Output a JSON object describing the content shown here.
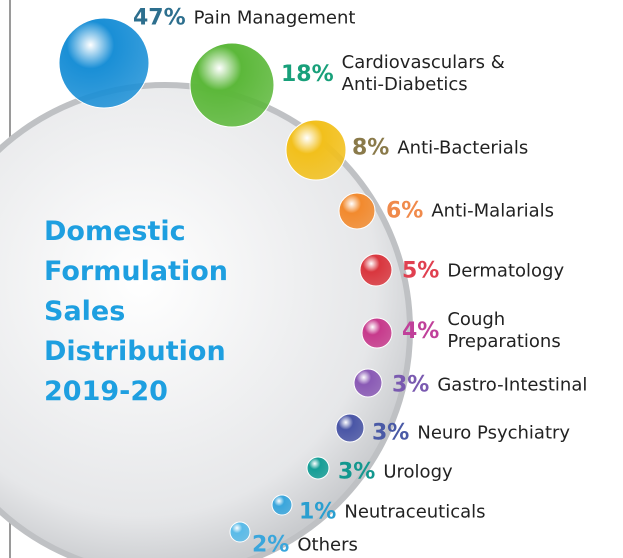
{
  "chart_data": {
    "type": "bubble",
    "title": "Domestic Formulation Sales Distribution 2019-20",
    "categories": [
      "Pain Management",
      "Cardiovasculars & Anti-Diabetics",
      "Anti-Bacterials",
      "Anti-Malarials",
      "Dermatology",
      "Cough Preparations",
      "Gastro-Intestinal",
      "Neuro Psychiatry",
      "Urology",
      "Neutraceuticals",
      "Others"
    ],
    "values": [
      47,
      18,
      8,
      6,
      5,
      4,
      3,
      3,
      3,
      1,
      2
    ],
    "value_labels": [
      "47%",
      "18%",
      "8%",
      "6%",
      "5%",
      "4%",
      "3%",
      "3%",
      "3%",
      "1%",
      "2%"
    ],
    "colors": [
      "#1a8fd6",
      "#5cb83a",
      "#f2c01c",
      "#f28a2e",
      "#d9363e",
      "#c73a8c",
      "#8a5ab5",
      "#4a56a6",
      "#159e96",
      "#3aa6dc",
      "#5bbbe8"
    ],
    "label_colors": [
      "#2d6f8e",
      "#18a07a",
      "#8a7a4a",
      "#f08a4b",
      "#e04050",
      "#c0409a",
      "#7a5ab0",
      "#4a5aa6",
      "#13988f",
      "#2a9fd0",
      "#3aa6dc"
    ]
  }
}
